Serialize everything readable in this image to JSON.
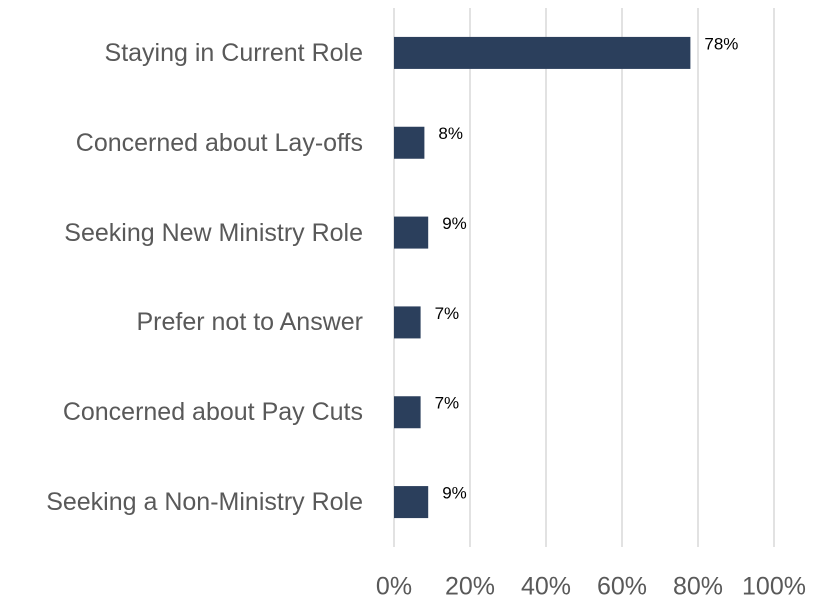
{
  "chart_data": {
    "type": "bar",
    "orientation": "horizontal",
    "categories": [
      "Staying in Current Role",
      "Concerned about Lay-offs",
      "Seeking New Ministry Role",
      "Prefer not to Answer",
      "Concerned about Pay Cuts",
      "Seeking a Non-Ministry Role"
    ],
    "values": [
      78,
      8,
      9,
      7,
      7,
      9
    ],
    "value_labels": [
      "78%",
      "8%",
      "9%",
      "7%",
      "7%",
      "9%"
    ],
    "color": "#2b3f5c",
    "xlim": [
      0,
      100
    ],
    "xticks": [
      {
        "value": 0,
        "label": "0%"
      },
      {
        "value": 20,
        "label": "20%"
      },
      {
        "value": 40,
        "label": "40%"
      },
      {
        "value": 60,
        "label": "60%"
      },
      {
        "value": 80,
        "label": "80%"
      },
      {
        "value": 100,
        "label": "100%"
      }
    ],
    "grid": true
  }
}
